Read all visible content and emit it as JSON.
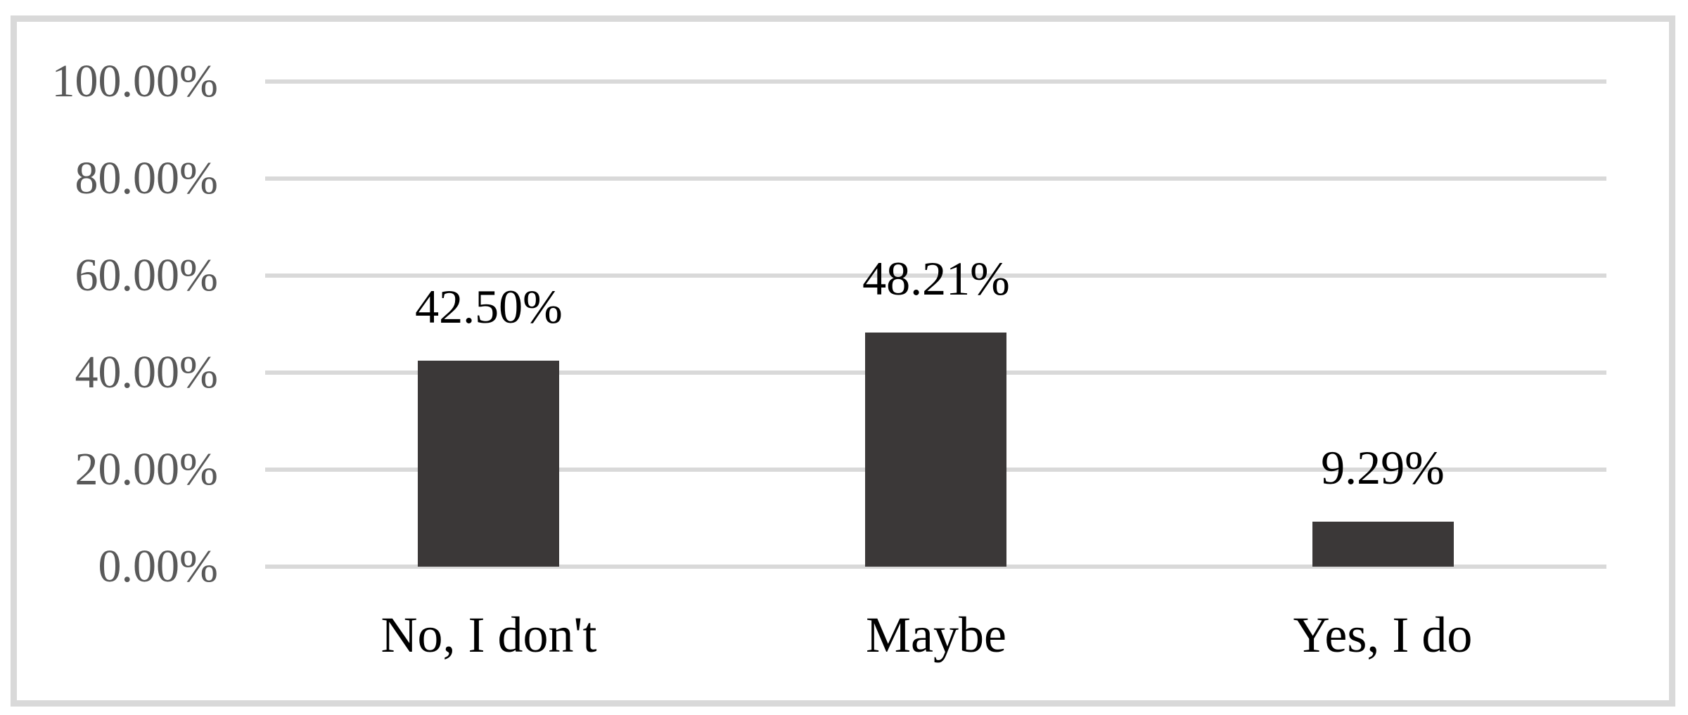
{
  "chart_data": {
    "type": "bar",
    "title": "",
    "xlabel": "",
    "ylabel": "",
    "categories": [
      "No, I don't",
      "Maybe",
      "Yes, I do"
    ],
    "values": [
      42.5,
      48.21,
      9.29
    ],
    "data_labels": [
      "42.50%",
      "48.21%",
      "9.29%"
    ],
    "y_ticks": [
      {
        "value": 100,
        "label": "100.00%"
      },
      {
        "value": 80,
        "label": "80.00%"
      },
      {
        "value": 60,
        "label": "60.00%"
      },
      {
        "value": 40,
        "label": "40.00%"
      },
      {
        "value": 20,
        "label": "20.00%"
      },
      {
        "value": 0,
        "label": "0.00%"
      }
    ],
    "ylim": [
      0,
      100
    ],
    "grid": true,
    "legend": false,
    "colors": {
      "bar": "#3b3838",
      "gridline": "#d9d9d9",
      "frame_border": "#d9d9d9",
      "axis_text": "#595959",
      "label_text": "#000000",
      "background": "#ffffff"
    }
  }
}
